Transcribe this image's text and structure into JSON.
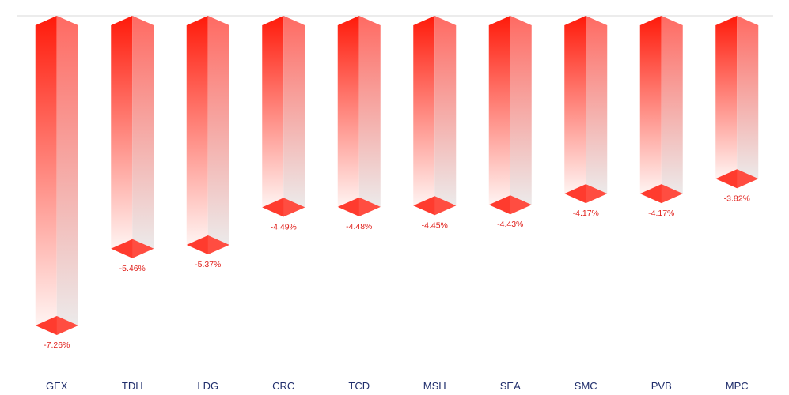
{
  "chart_data": {
    "type": "bar",
    "title": "",
    "xlabel": "",
    "ylabel": "",
    "categories": [
      "GEX",
      "TDH",
      "LDG",
      "CRC",
      "TCD",
      "MSH",
      "SEA",
      "SMC",
      "PVB",
      "MPC"
    ],
    "values": [
      -7.26,
      -5.46,
      -5.37,
      -4.49,
      -4.48,
      -4.45,
      -4.43,
      -4.17,
      -4.17,
      -3.82
    ],
    "value_labels": [
      "-7.26%",
      "-5.46%",
      "-5.37%",
      "-4.49%",
      "-4.48%",
      "-4.45%",
      "-4.43%",
      "-4.17%",
      "-4.17%",
      "-3.82%"
    ],
    "unit": "%",
    "ylim": [
      -7.26,
      0
    ],
    "grid": false,
    "legend": "none",
    "colors": {
      "bar_top": "#ff1a0a",
      "bar_bottom": "#fff4f2",
      "side_top": "#ff6a62",
      "side_bottom": "#eceaea",
      "cap": "#ff3b2e",
      "value_label": "#e0201b",
      "category_label": "#1f2d6b",
      "baseline": "#d9d9d9"
    }
  }
}
